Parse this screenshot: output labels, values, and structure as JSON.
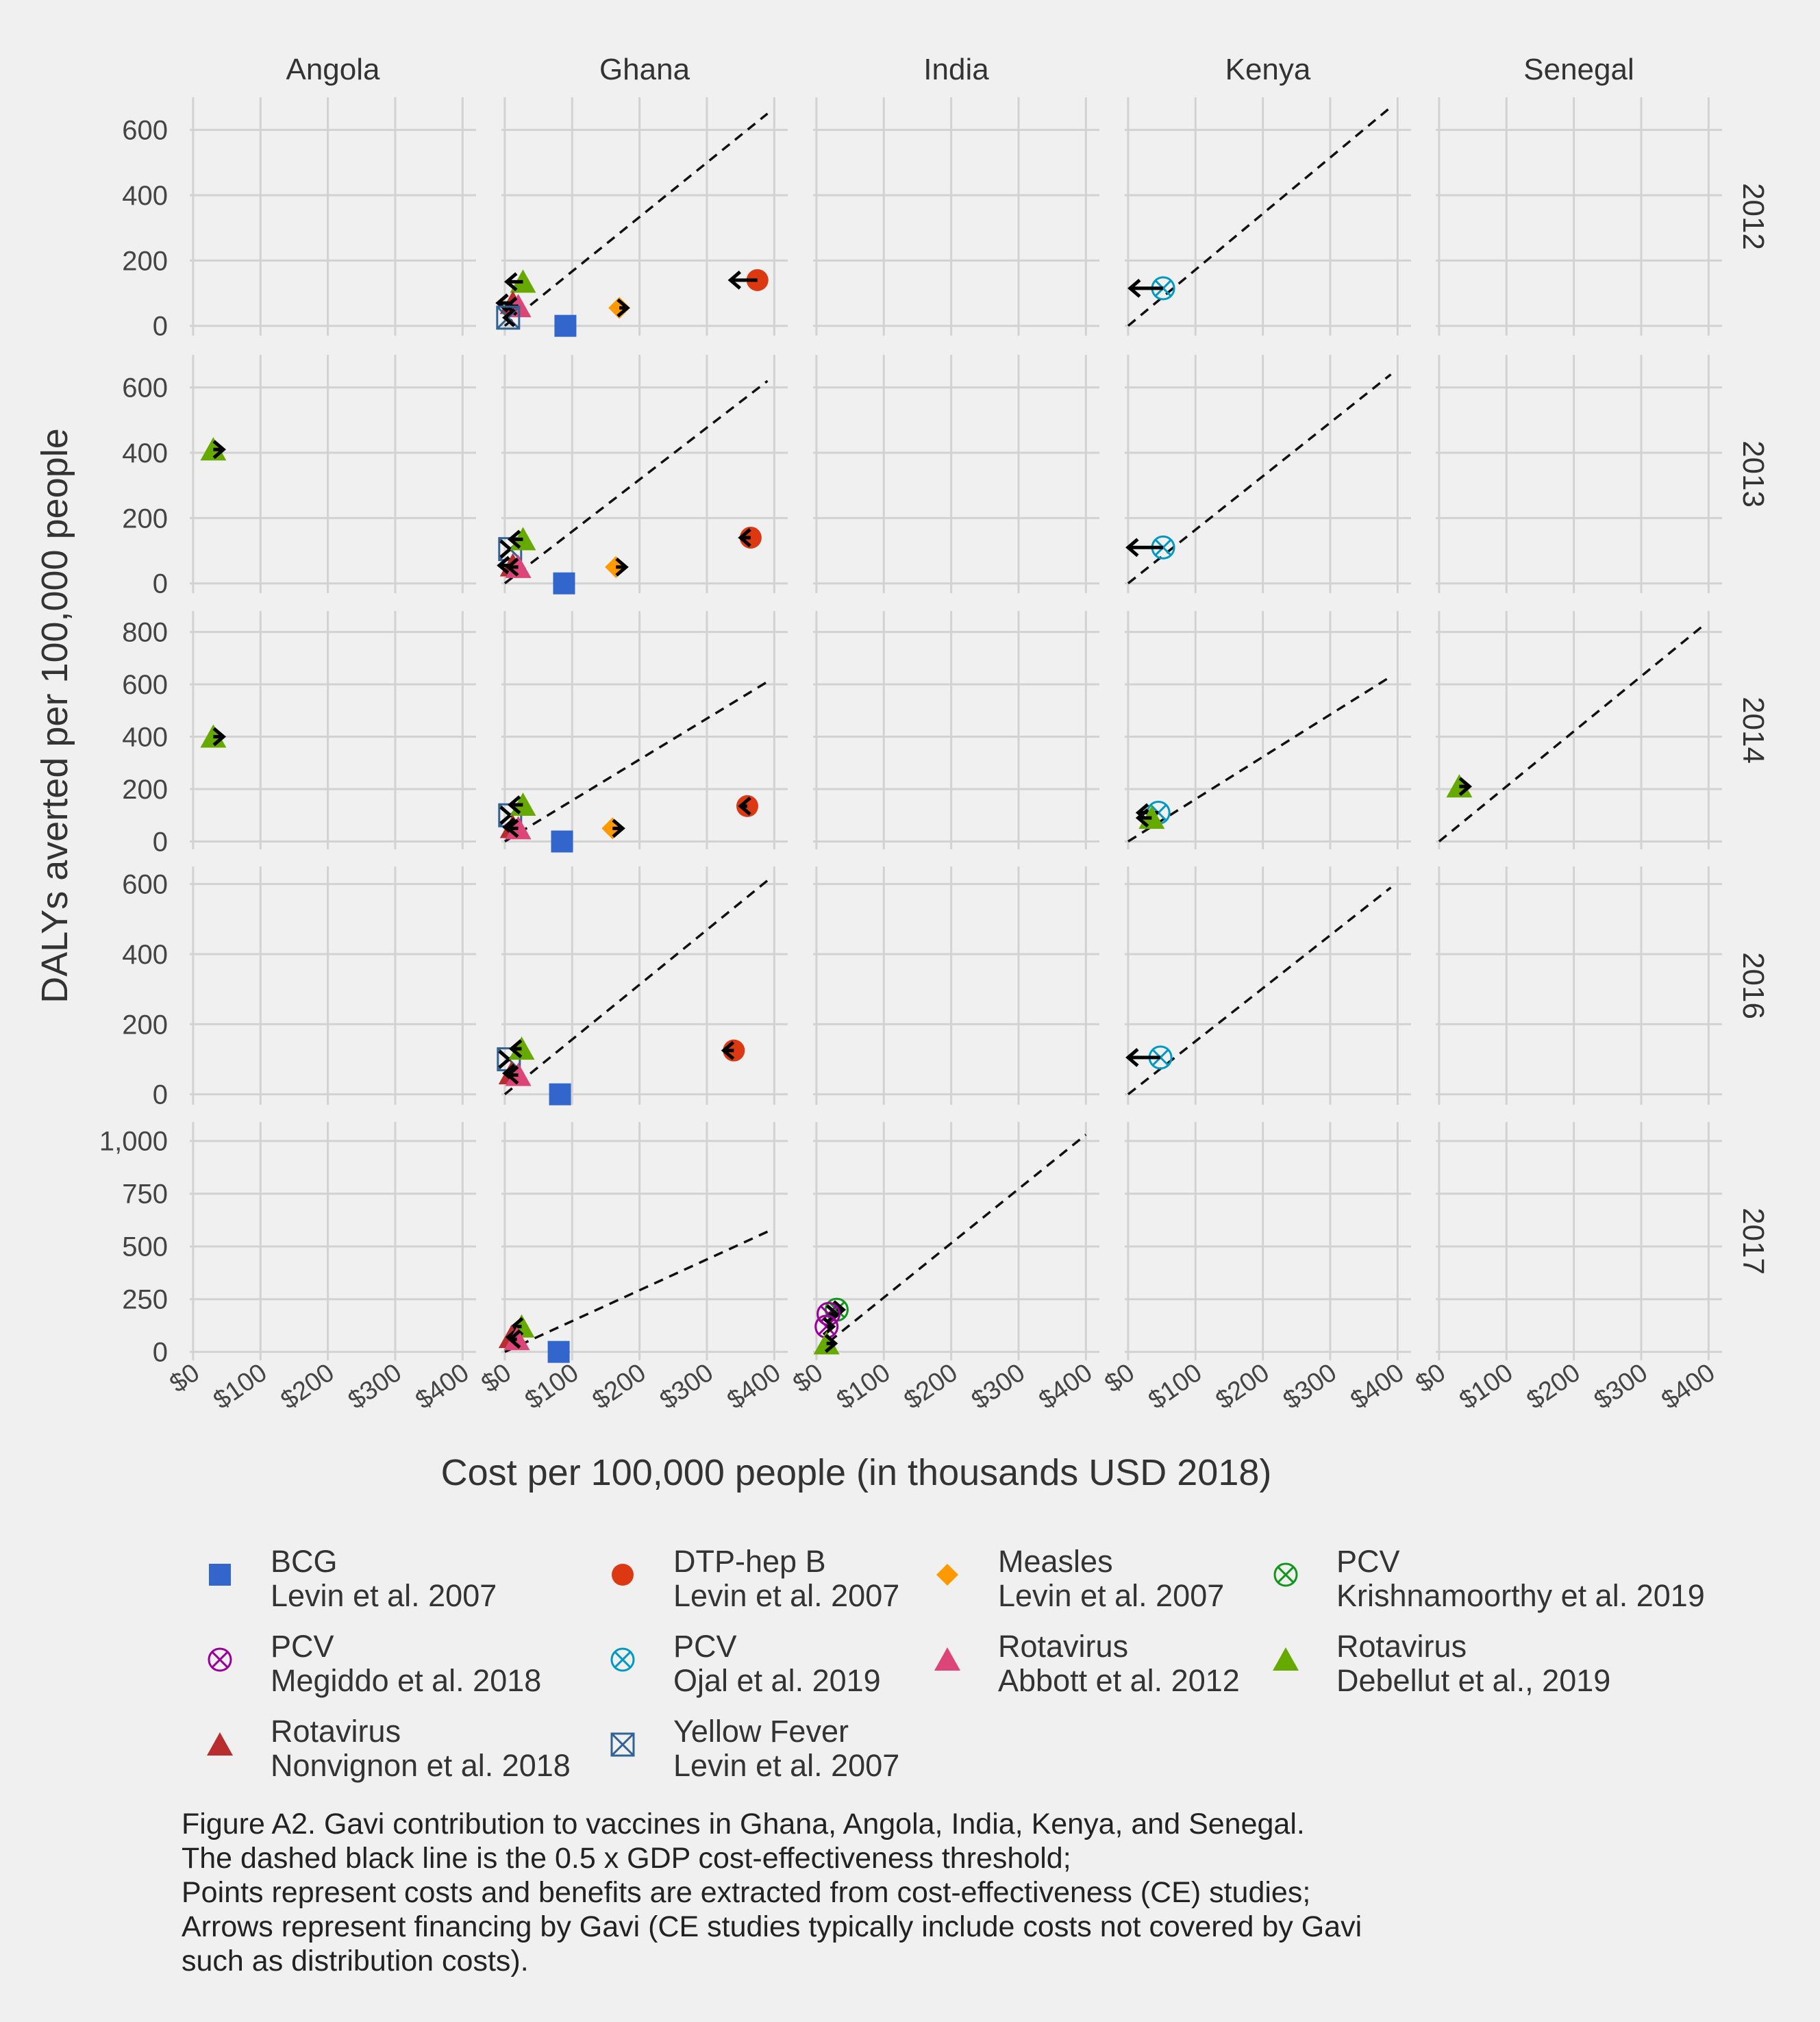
{
  "chart_data": {
    "type": "scatter",
    "facet_columns": [
      "Angola",
      "Ghana",
      "India",
      "Kenya",
      "Senegal"
    ],
    "facet_rows": [
      "2012",
      "2013",
      "2014",
      "2016",
      "2017"
    ],
    "xlabel": "Cost per 100,000 people (in thousands USD 2018)",
    "ylabel": "DALYs averted per 100,000 people",
    "x_ticks": [
      "$0",
      "$100",
      "$200",
      "$300",
      "$400"
    ],
    "xlim": [
      -5,
      420
    ],
    "row_scales": [
      {
        "ylim": [
          -30,
          700
        ],
        "ticks": [
          0,
          200,
          400,
          600
        ],
        "tick_labels": [
          "0",
          "200",
          "400",
          "600"
        ]
      },
      {
        "ylim": [
          -30,
          700
        ],
        "ticks": [
          0,
          200,
          400,
          600
        ],
        "tick_labels": [
          "0",
          "200",
          "400",
          "600"
        ]
      },
      {
        "ylim": [
          -30,
          880
        ],
        "ticks": [
          0,
          200,
          400,
          600,
          800
        ],
        "tick_labels": [
          "0",
          "200",
          "400",
          "600",
          "800"
        ]
      },
      {
        "ylim": [
          -30,
          650
        ],
        "ticks": [
          0,
          200,
          400,
          600
        ],
        "tick_labels": [
          "0",
          "200",
          "400",
          "600"
        ]
      },
      {
        "ylim": [
          -40,
          1090
        ],
        "ticks": [
          0,
          250,
          500,
          750,
          1000
        ],
        "tick_labels": [
          "0",
          "250",
          "500",
          "750",
          "1,000"
        ]
      }
    ],
    "series": [
      {
        "label": "BCG",
        "sub": "Levin et al. 2007",
        "shape": "square",
        "color": "#3366cc"
      },
      {
        "label": "DTP-hep B",
        "sub": "Levin et al. 2007",
        "shape": "circle",
        "color": "#dc3912"
      },
      {
        "label": "Measles",
        "sub": "Levin et al. 2007",
        "shape": "diamond",
        "color": "#ff9900"
      },
      {
        "label": "PCV",
        "sub": "Krishnamoorthy et al. 2019",
        "shape": "circlex",
        "color": "#109618"
      },
      {
        "label": "PCV",
        "sub": "Megiddo et al. 2018",
        "shape": "circlex",
        "color": "#990099"
      },
      {
        "label": "PCV",
        "sub": "Ojal et al. 2019",
        "shape": "circlex",
        "color": "#0099c6"
      },
      {
        "label": "Rotavirus",
        "sub": "Abbott et al. 2012",
        "shape": "triangle",
        "color": "#dd4477"
      },
      {
        "label": "Rotavirus",
        "sub": "Debellut et al., 2019",
        "shape": "triangle",
        "color": "#66aa00"
      },
      {
        "label": "Rotavirus",
        "sub": "Nonvignon et al. 2018",
        "shape": "triangle",
        "color": "#b82e2e"
      },
      {
        "label": "Yellow Fever",
        "sub": "Levin et al. 2007",
        "shape": "squarex",
        "color": "#316395"
      }
    ],
    "thresholds": [
      {
        "row": 0,
        "col": 1,
        "x": [
          0,
          390
        ],
        "y": [
          0,
          650
        ]
      },
      {
        "row": 0,
        "col": 3,
        "x": [
          0,
          390
        ],
        "y": [
          0,
          670
        ]
      },
      {
        "row": 1,
        "col": 1,
        "x": [
          0,
          390
        ],
        "y": [
          0,
          620
        ]
      },
      {
        "row": 1,
        "col": 3,
        "x": [
          0,
          390
        ],
        "y": [
          0,
          640
        ]
      },
      {
        "row": 2,
        "col": 1,
        "x": [
          0,
          390
        ],
        "y": [
          0,
          610
        ]
      },
      {
        "row": 2,
        "col": 3,
        "x": [
          0,
          390
        ],
        "y": [
          0,
          630
        ]
      },
      {
        "row": 2,
        "col": 4,
        "x": [
          0,
          390
        ],
        "y": [
          0,
          820
        ]
      },
      {
        "row": 3,
        "col": 1,
        "x": [
          0,
          390
        ],
        "y": [
          0,
          610
        ]
      },
      {
        "row": 3,
        "col": 3,
        "x": [
          0,
          390
        ],
        "y": [
          0,
          590
        ]
      },
      {
        "row": 4,
        "col": 1,
        "x": [
          0,
          390
        ],
        "y": [
          0,
          570
        ]
      },
      {
        "row": 4,
        "col": 2,
        "x": [
          0,
          400
        ],
        "y": [
          0,
          1030
        ]
      }
    ],
    "points": [
      {
        "row": 0,
        "col": 1,
        "s": 0,
        "x": 90,
        "y": 0
      },
      {
        "row": 0,
        "col": 1,
        "s": 1,
        "x": 375,
        "y": 140,
        "arrow_to": 335
      },
      {
        "row": 0,
        "col": 1,
        "s": 2,
        "x": 170,
        "y": 55,
        "arrow_to": 182
      },
      {
        "row": 0,
        "col": 1,
        "s": 7,
        "x": 27,
        "y": 135,
        "arrow_to": 3
      },
      {
        "row": 0,
        "col": 1,
        "s": 8,
        "x": 12,
        "y": 70,
        "arrow_to": -10
      },
      {
        "row": 0,
        "col": 1,
        "s": 6,
        "x": 20,
        "y": 60,
        "arrow_to": 3
      },
      {
        "row": 0,
        "col": 1,
        "s": 9,
        "x": 5,
        "y": 25,
        "arrow_to": 0
      },
      {
        "row": 0,
        "col": 3,
        "s": 5,
        "x": 52,
        "y": 115,
        "arrow_to": 3
      },
      {
        "row": 1,
        "col": 0,
        "s": 7,
        "x": 30,
        "y": 410,
        "arrow_to": 45
      },
      {
        "row": 1,
        "col": 1,
        "s": 0,
        "x": 88,
        "y": 0
      },
      {
        "row": 1,
        "col": 1,
        "s": 1,
        "x": 365,
        "y": 140,
        "arrow_to": 350
      },
      {
        "row": 1,
        "col": 1,
        "s": 2,
        "x": 165,
        "y": 50,
        "arrow_to": 180
      },
      {
        "row": 1,
        "col": 1,
        "s": 9,
        "x": 8,
        "y": 105,
        "arrow_to": 8
      },
      {
        "row": 1,
        "col": 1,
        "s": 7,
        "x": 27,
        "y": 135,
        "arrow_to": 8
      },
      {
        "row": 1,
        "col": 1,
        "s": 8,
        "x": 12,
        "y": 55,
        "arrow_to": -8
      },
      {
        "row": 1,
        "col": 1,
        "s": 6,
        "x": 20,
        "y": 50,
        "arrow_to": 5
      },
      {
        "row": 1,
        "col": 3,
        "s": 5,
        "x": 52,
        "y": 110,
        "arrow_to": 0
      },
      {
        "row": 2,
        "col": 0,
        "s": 7,
        "x": 30,
        "y": 400,
        "arrow_to": 45
      },
      {
        "row": 2,
        "col": 1,
        "s": 0,
        "x": 85,
        "y": 0
      },
      {
        "row": 2,
        "col": 1,
        "s": 1,
        "x": 360,
        "y": 135,
        "arrow_to": 350
      },
      {
        "row": 2,
        "col": 1,
        "s": 2,
        "x": 160,
        "y": 50,
        "arrow_to": 175
      },
      {
        "row": 2,
        "col": 1,
        "s": 9,
        "x": 8,
        "y": 100,
        "arrow_to": 8
      },
      {
        "row": 2,
        "col": 1,
        "s": 7,
        "x": 27,
        "y": 140,
        "arrow_to": 8
      },
      {
        "row": 2,
        "col": 1,
        "s": 8,
        "x": 12,
        "y": 55,
        "arrow_to": 0
      },
      {
        "row": 2,
        "col": 1,
        "s": 6,
        "x": 20,
        "y": 50,
        "arrow_to": 5
      },
      {
        "row": 2,
        "col": 3,
        "s": 5,
        "x": 45,
        "y": 110,
        "arrow_to": 15
      },
      {
        "row": 2,
        "col": 3,
        "s": 7,
        "x": 35,
        "y": 90,
        "arrow_to": 15
      },
      {
        "row": 2,
        "col": 4,
        "s": 7,
        "x": 30,
        "y": 210,
        "arrow_to": 45
      },
      {
        "row": 3,
        "col": 1,
        "s": 0,
        "x": 82,
        "y": 0
      },
      {
        "row": 3,
        "col": 1,
        "s": 1,
        "x": 340,
        "y": 125,
        "arrow_to": 325
      },
      {
        "row": 3,
        "col": 1,
        "s": 9,
        "x": 6,
        "y": 100,
        "arrow_to": 6
      },
      {
        "row": 3,
        "col": 1,
        "s": 7,
        "x": 25,
        "y": 130,
        "arrow_to": 10
      },
      {
        "row": 3,
        "col": 1,
        "s": 8,
        "x": 10,
        "y": 60,
        "arrow_to": 0
      },
      {
        "row": 3,
        "col": 1,
        "s": 6,
        "x": 20,
        "y": 55,
        "arrow_to": 5
      },
      {
        "row": 3,
        "col": 3,
        "s": 5,
        "x": 48,
        "y": 105,
        "arrow_to": 0
      },
      {
        "row": 4,
        "col": 1,
        "s": 0,
        "x": 80,
        "y": 0
      },
      {
        "row": 4,
        "col": 1,
        "s": 7,
        "x": 25,
        "y": 120,
        "arrow_to": 12
      },
      {
        "row": 4,
        "col": 1,
        "s": 8,
        "x": 10,
        "y": 70,
        "arrow_to": 5
      },
      {
        "row": 4,
        "col": 1,
        "s": 6,
        "x": 18,
        "y": 60,
        "arrow_to": 8
      },
      {
        "row": 4,
        "col": 2,
        "s": 3,
        "x": 30,
        "y": 200,
        "arrow_to": 40
      },
      {
        "row": 4,
        "col": 2,
        "s": 4,
        "x": 18,
        "y": 180,
        "arrow_to": 30
      },
      {
        "row": 4,
        "col": 2,
        "s": 4,
        "x": 15,
        "y": 120,
        "arrow_to": 25
      },
      {
        "row": 4,
        "col": 2,
        "s": 7,
        "x": 15,
        "y": 40,
        "arrow_to": 28
      }
    ]
  },
  "caption": [
    "Figure A2. Gavi contribution to vaccines in Ghana, Angola, India, Kenya, and Senegal.",
    "The dashed black line is the 0.5 x GDP cost-effectiveness threshold;",
    "Points represent costs and benefits are extracted from cost-effectiveness (CE) studies;",
    "Arrows represent financing by Gavi (CE studies typically include costs not covered by Gavi",
    "such as distribution costs)."
  ]
}
